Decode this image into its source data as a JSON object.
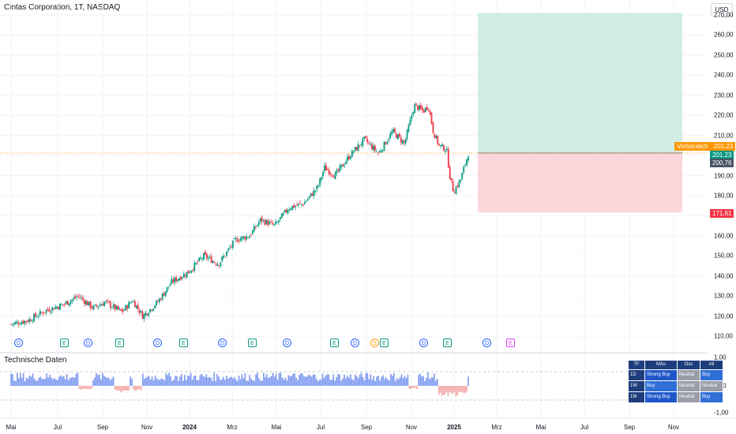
{
  "header": {
    "title": "Cintas Corporation, 1T, NASDAQ",
    "currency": "USD"
  },
  "indicator": {
    "title": "Technische Daten"
  },
  "y_axis_labels": [
    "270,00",
    "260,00",
    "250,00",
    "240,00",
    "230,00",
    "220,00",
    "210,00",
    "200,00",
    "190,00",
    "180,00",
    "170,00",
    "160,00",
    "150,00",
    "140,00",
    "130,00",
    "120,00",
    "110,00"
  ],
  "osc_axis_labels": [
    "1,00",
    "0,00",
    "-1,00"
  ],
  "x_axis_labels": [
    {
      "text": "Mai",
      "bold": false
    },
    {
      "text": "Jul",
      "bold": false
    },
    {
      "text": "Sep",
      "bold": false
    },
    {
      "text": "Nov",
      "bold": false
    },
    {
      "text": "2024",
      "bold": true
    },
    {
      "text": "Mrz",
      "bold": false
    },
    {
      "text": "Mai",
      "bold": false
    },
    {
      "text": "Jul",
      "bold": false
    },
    {
      "text": "Sep",
      "bold": false
    },
    {
      "text": "Nov",
      "bold": false
    },
    {
      "text": "2025",
      "bold": true
    },
    {
      "text": "Mrz",
      "bold": false
    },
    {
      "text": "Mai",
      "bold": false
    },
    {
      "text": "Jul",
      "bold": false
    },
    {
      "text": "Sep",
      "bold": false
    },
    {
      "text": "Nov",
      "bold": false
    }
  ],
  "price_labels": {
    "premarket_label": "Vorbörslich",
    "premarket_value": "201,23",
    "last_value": "201,23",
    "prev_value": "200,76",
    "stop_value": "171,61"
  },
  "colors": {
    "up": "#089981",
    "down": "#f23645",
    "profit_zone": "#d2ece6",
    "loss_zone": "#fbd6da",
    "premarket": "#ff9800",
    "prev": "#4a5563",
    "osc_pos": "#7b97f0",
    "osc_neg": "#f4a6a6"
  },
  "events": [
    "D",
    "E",
    "D",
    "E",
    "D",
    "E",
    "D",
    "E",
    "D",
    "E",
    "D",
    "S",
    "E",
    "D",
    "E",
    "D",
    "E"
  ],
  "ta_table": {
    "headers": [
      "TF",
      "MAs",
      "Osc",
      "All"
    ],
    "rows": [
      {
        "tf": "1D",
        "mas": "Strong Buy",
        "osc": "Neutral",
        "all": "Buy"
      },
      {
        "tf": "1W",
        "mas": "Buy",
        "osc": "Neutral",
        "all": "Neutral"
      },
      {
        "tf": "1M",
        "mas": "Strong Buy",
        "osc": "Neutral",
        "all": "Buy"
      }
    ]
  },
  "chart_data": {
    "type": "candlestick",
    "title": "Cintas Corporation, 1T, NASDAQ",
    "ylim": [
      105,
      272
    ],
    "y_ticks": [
      110,
      120,
      130,
      140,
      150,
      160,
      170,
      180,
      190,
      200,
      210,
      220,
      230,
      240,
      250,
      260,
      270
    ],
    "x_labels": [
      "Mai",
      "Jul",
      "Sep",
      "Nov",
      "2024",
      "Mrz",
      "Mai",
      "Jul",
      "Sep",
      "Nov",
      "2025",
      "Mrz",
      "Mai",
      "Jul",
      "Sep",
      "Nov"
    ],
    "close_series": [
      [
        "2023-04-20",
        116
      ],
      [
        "2023-05-15",
        118
      ],
      [
        "2023-06-10",
        123
      ],
      [
        "2023-07-05",
        126
      ],
      [
        "2023-07-25",
        130
      ],
      [
        "2023-08-15",
        124
      ],
      [
        "2023-09-01",
        127
      ],
      [
        "2023-09-25",
        122
      ],
      [
        "2023-10-10",
        128
      ],
      [
        "2023-10-25",
        120
      ],
      [
        "2023-11-15",
        127
      ],
      [
        "2023-12-05",
        137
      ],
      [
        "2023-12-29",
        142
      ],
      [
        "2024-01-20",
        150
      ],
      [
        "2024-02-10",
        146
      ],
      [
        "2024-03-05",
        158
      ],
      [
        "2024-03-25",
        160
      ],
      [
        "2024-04-10",
        168
      ],
      [
        "2024-04-30",
        165
      ],
      [
        "2024-05-20",
        174
      ],
      [
        "2024-06-10",
        176
      ],
      [
        "2024-06-30",
        184
      ],
      [
        "2024-07-10",
        194
      ],
      [
        "2024-07-25",
        190
      ],
      [
        "2024-08-15",
        200
      ],
      [
        "2024-09-05",
        208
      ],
      [
        "2024-09-25",
        201
      ],
      [
        "2024-10-15",
        212
      ],
      [
        "2024-11-01",
        206
      ],
      [
        "2024-11-15",
        225
      ],
      [
        "2024-11-28",
        222
      ],
      [
        "2024-12-05",
        225
      ],
      [
        "2024-12-12",
        212
      ],
      [
        "2024-12-20",
        205
      ],
      [
        "2024-12-31",
        203
      ],
      [
        "2025-01-05",
        189
      ],
      [
        "2025-01-10",
        182
      ],
      [
        "2025-01-20",
        188
      ],
      [
        "2025-01-31",
        201
      ]
    ],
    "position_tool": {
      "entry": 201.23,
      "stop": 171.61,
      "target": 271
    },
    "last_price": 201.23,
    "oscillator": {
      "label": "Technische Daten",
      "ylim": [
        -1,
        1
      ]
    }
  }
}
